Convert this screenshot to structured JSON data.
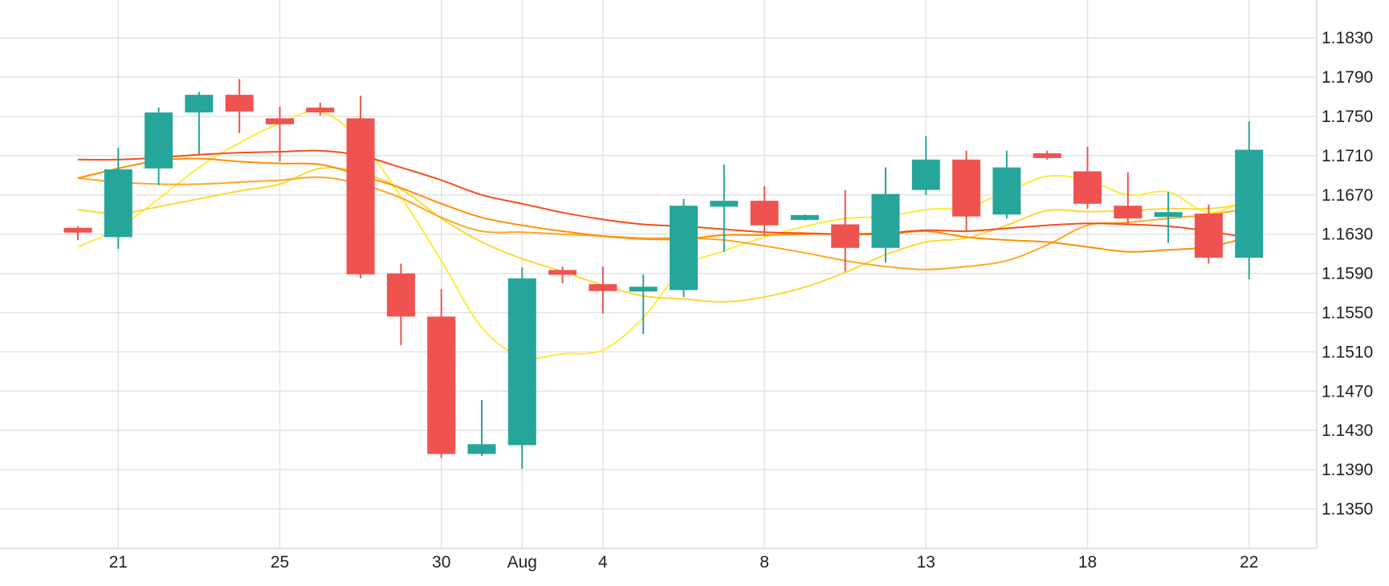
{
  "chart_data": {
    "type": "candlestick",
    "title": "",
    "xlabel": "",
    "ylabel": "",
    "ylim": [
      1.131,
      1.187
    ],
    "y_axis_position": "right",
    "grid": true,
    "legend": "none",
    "y_ticks": [
      "1.1350",
      "1.1390",
      "1.1430",
      "1.1470",
      "1.1510",
      "1.1550",
      "1.1590",
      "1.1630",
      "1.1670",
      "1.1710",
      "1.1750",
      "1.1790",
      "1.1830"
    ],
    "x_ticks": [
      {
        "label": "21",
        "index": 1
      },
      {
        "label": "25",
        "index": 5
      },
      {
        "label": "30",
        "index": 9
      },
      {
        "label": "Aug",
        "index": 11
      },
      {
        "label": "4",
        "index": 13
      },
      {
        "label": "8",
        "index": 17
      },
      {
        "label": "13",
        "index": 21
      },
      {
        "label": "18",
        "index": 25
      },
      {
        "label": "22",
        "index": 29
      }
    ],
    "colors": {
      "up": "#26a69a",
      "down": "#ef5350",
      "grid": "#e3e3e3"
    },
    "candles": [
      {
        "o": 1.1636,
        "h": 1.1638,
        "l": 1.1624,
        "c": 1.1632
      },
      {
        "o": 1.1627,
        "h": 1.1718,
        "l": 1.1615,
        "c": 1.1696
      },
      {
        "o": 1.1697,
        "h": 1.1759,
        "l": 1.168,
        "c": 1.1754
      },
      {
        "o": 1.1754,
        "h": 1.1775,
        "l": 1.1712,
        "c": 1.1772
      },
      {
        "o": 1.1772,
        "h": 1.1788,
        "l": 1.1733,
        "c": 1.1755
      },
      {
        "o": 1.1748,
        "h": 1.176,
        "l": 1.1704,
        "c": 1.1742
      },
      {
        "o": 1.1758,
        "h": 1.1764,
        "l": 1.1751,
        "c": 1.1755
      },
      {
        "o": 1.1748,
        "h": 1.1771,
        "l": 1.1585,
        "c": 1.1589
      },
      {
        "o": 1.159,
        "h": 1.16,
        "l": 1.1517,
        "c": 1.1546
      },
      {
        "o": 1.1546,
        "h": 1.1574,
        "l": 1.1402,
        "c": 1.1406
      },
      {
        "o": 1.1406,
        "h": 1.1461,
        "l": 1.1404,
        "c": 1.1416
      },
      {
        "o": 1.1415,
        "h": 1.1596,
        "l": 1.1391,
        "c": 1.1585
      },
      {
        "o": 1.1593,
        "h": 1.1597,
        "l": 1.158,
        "c": 1.1589
      },
      {
        "o": 1.1579,
        "h": 1.1597,
        "l": 1.1549,
        "c": 1.1572
      },
      {
        "o": 1.1572,
        "h": 1.1589,
        "l": 1.1528,
        "c": 1.1576
      },
      {
        "o": 1.1573,
        "h": 1.1666,
        "l": 1.1566,
        "c": 1.1659
      },
      {
        "o": 1.1658,
        "h": 1.1701,
        "l": 1.1612,
        "c": 1.1664
      },
      {
        "o": 1.1664,
        "h": 1.1679,
        "l": 1.1628,
        "c": 1.1639
      },
      {
        "o": 1.1647,
        "h": 1.165,
        "l": 1.1644,
        "c": 1.1647
      },
      {
        "o": 1.164,
        "h": 1.1675,
        "l": 1.1592,
        "c": 1.1616
      },
      {
        "o": 1.1616,
        "h": 1.1698,
        "l": 1.1601,
        "c": 1.1671
      },
      {
        "o": 1.1675,
        "h": 1.173,
        "l": 1.167,
        "c": 1.1706
      },
      {
        "o": 1.1706,
        "h": 1.1715,
        "l": 1.1632,
        "c": 1.1648
      },
      {
        "o": 1.165,
        "h": 1.1715,
        "l": 1.1646,
        "c": 1.1698
      },
      {
        "o": 1.1712,
        "h": 1.1715,
        "l": 1.1706,
        "c": 1.1708
      },
      {
        "o": 1.1694,
        "h": 1.1719,
        "l": 1.1656,
        "c": 1.1661
      },
      {
        "o": 1.1659,
        "h": 1.1693,
        "l": 1.1639,
        "c": 1.1646
      },
      {
        "o": 1.165,
        "h": 1.1673,
        "l": 1.1621,
        "c": 1.165
      },
      {
        "o": 1.1651,
        "h": 1.166,
        "l": 1.16,
        "c": 1.1606
      },
      {
        "o": 1.1606,
        "h": 1.1745,
        "l": 1.1584,
        "c": 1.1716
      }
    ],
    "series": [
      {
        "color": "#ffeb3b",
        "values": [
          1.1617,
          1.1636,
          1.1666,
          1.1698,
          1.1723,
          1.1743,
          1.1755,
          1.1725,
          1.1668,
          1.1603,
          1.1535,
          1.1505,
          1.1508,
          1.1512,
          1.1545,
          1.1596,
          1.1613,
          1.1627,
          1.1638,
          1.1646,
          1.1648,
          1.1655,
          1.1658,
          1.1673,
          1.1689,
          1.1685,
          1.167,
          1.1673,
          1.1652,
          1.1666
        ]
      },
      {
        "color": "#fdd835",
        "values": [
          1.1655,
          1.1651,
          1.1658,
          1.1666,
          1.1674,
          1.1681,
          1.1697,
          1.1693,
          1.1676,
          1.1646,
          1.1622,
          1.1605,
          1.1592,
          1.1578,
          1.1567,
          1.1564,
          1.1561,
          1.1566,
          1.1576,
          1.1591,
          1.1609,
          1.1622,
          1.1626,
          1.1639,
          1.1654,
          1.1653,
          1.1654,
          1.1656,
          1.1656,
          1.1661
        ]
      },
      {
        "color": "#ffa726",
        "values": [
          1.1687,
          1.1683,
          1.1681,
          1.1681,
          1.1683,
          1.1685,
          1.1688,
          1.1681,
          1.1667,
          1.1647,
          1.1633,
          1.1632,
          1.163,
          1.1628,
          1.1626,
          1.1626,
          1.1624,
          1.1618,
          1.1611,
          1.1603,
          1.1597,
          1.1594,
          1.1597,
          1.1603,
          1.1619,
          1.1639,
          1.1642,
          1.1646,
          1.165,
          1.1656
        ]
      },
      {
        "color": "#ff8f00",
        "values": [
          1.1687,
          1.1697,
          1.1705,
          1.1707,
          1.1704,
          1.1702,
          1.1701,
          1.169,
          1.1677,
          1.1661,
          1.1647,
          1.1639,
          1.1633,
          1.1628,
          1.1625,
          1.1625,
          1.1629,
          1.1629,
          1.163,
          1.163,
          1.163,
          1.1633,
          1.1627,
          1.1624,
          1.1622,
          1.1617,
          1.1612,
          1.1614,
          1.1617,
          1.1627
        ]
      },
      {
        "color": "#f4511e",
        "values": [
          1.1706,
          1.1706,
          1.1708,
          1.1711,
          1.1713,
          1.1714,
          1.1715,
          1.171,
          1.1698,
          1.1685,
          1.167,
          1.1661,
          1.1652,
          1.1645,
          1.164,
          1.1638,
          1.1635,
          1.1632,
          1.1631,
          1.163,
          1.1631,
          1.1634,
          1.1633,
          1.1636,
          1.1639,
          1.1641,
          1.164,
          1.1638,
          1.1633,
          1.1626
        ]
      }
    ]
  }
}
